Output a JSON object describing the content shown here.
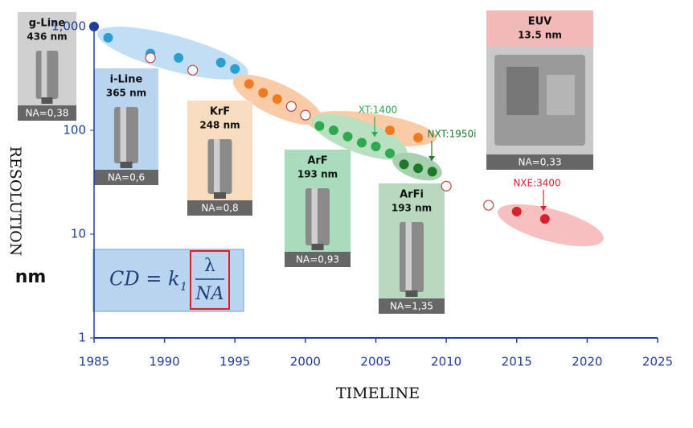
{
  "chart_data": {
    "type": "scatter",
    "log_y": true,
    "x_label": "TIMELINE",
    "y_label": "RESOLUTION",
    "y_unit": "nm",
    "xlim": [
      1985,
      2025
    ],
    "ylim": [
      1,
      1000
    ],
    "xticks": [
      1985,
      1990,
      1995,
      2000,
      2005,
      2010,
      2015,
      2020,
      2025
    ],
    "yticks": [
      {
        "value": 1000,
        "label": "1,000"
      },
      100,
      10,
      1
    ],
    "series": [
      {
        "color": "#1f3f9a",
        "marker": "filled",
        "x": [
          1985
        ],
        "values": [
          1000
        ]
      },
      {
        "color": "#2a9fd0",
        "marker": "filled",
        "x": [
          1986,
          1989,
          1989,
          1991,
          1994,
          1995
        ],
        "values": [
          780,
          550,
          500,
          500,
          450,
          390
        ]
      },
      {
        "color": "#f07a22",
        "marker": "filled",
        "x": [
          1996,
          1997,
          1998,
          2006,
          2008
        ],
        "values": [
          280,
          230,
          200,
          100,
          85
        ]
      },
      {
        "color": "#2fa84f",
        "marker": "filled",
        "x": [
          2001,
          2002,
          2003,
          2004,
          2005,
          2006
        ],
        "values": [
          110,
          100,
          87,
          76,
          70,
          60
        ]
      },
      {
        "color": "#1e7a2a",
        "marker": "filled",
        "x": [
          2007,
          2008,
          2009
        ],
        "values": [
          47,
          43,
          40
        ]
      },
      {
        "color": "#d9202e",
        "marker": "filled",
        "x": [
          2015,
          2017
        ],
        "values": [
          16.5,
          14
        ]
      },
      {
        "color": "#b84a4a",
        "marker": "open",
        "x": [
          1989,
          1992,
          1999,
          2000,
          2010,
          2013
        ],
        "values": [
          500,
          380,
          170,
          140,
          29,
          19
        ]
      }
    ],
    "annotations": [
      {
        "text": "XT:1400",
        "color": "#2fa84f"
      },
      {
        "text": "NXT:1950i",
        "color": "#1e7a2a"
      },
      {
        "text": "NXE:3400",
        "color": "#d9202e"
      }
    ],
    "panels": [
      {
        "title": "g-Line",
        "wavelength": "436 nm",
        "na": "NA=0,38",
        "color": "#d0d0d0"
      },
      {
        "title": "i-Line",
        "wavelength": "365 nm",
        "na": "NA=0,6",
        "color": "#b9d4ef"
      },
      {
        "title": "KrF",
        "wavelength": "248 nm",
        "na": "NA=0,8",
        "color": "#f8dcc0"
      },
      {
        "title": "ArF",
        "wavelength": "193 nm",
        "na": "NA=0,93",
        "color": "#a8dcbc"
      },
      {
        "title": "ArFi",
        "wavelength": "193 nm",
        "na": "NA=1,35",
        "color": "#b8d9bd"
      },
      {
        "title": "EUV",
        "wavelength": "13.5 nm",
        "na": "NA=0,33",
        "color": "#f2b9b9"
      }
    ],
    "formula": {
      "lhs": "CD = k",
      "subscript": "1",
      "numerator": "λ",
      "denominator": "NA"
    }
  }
}
